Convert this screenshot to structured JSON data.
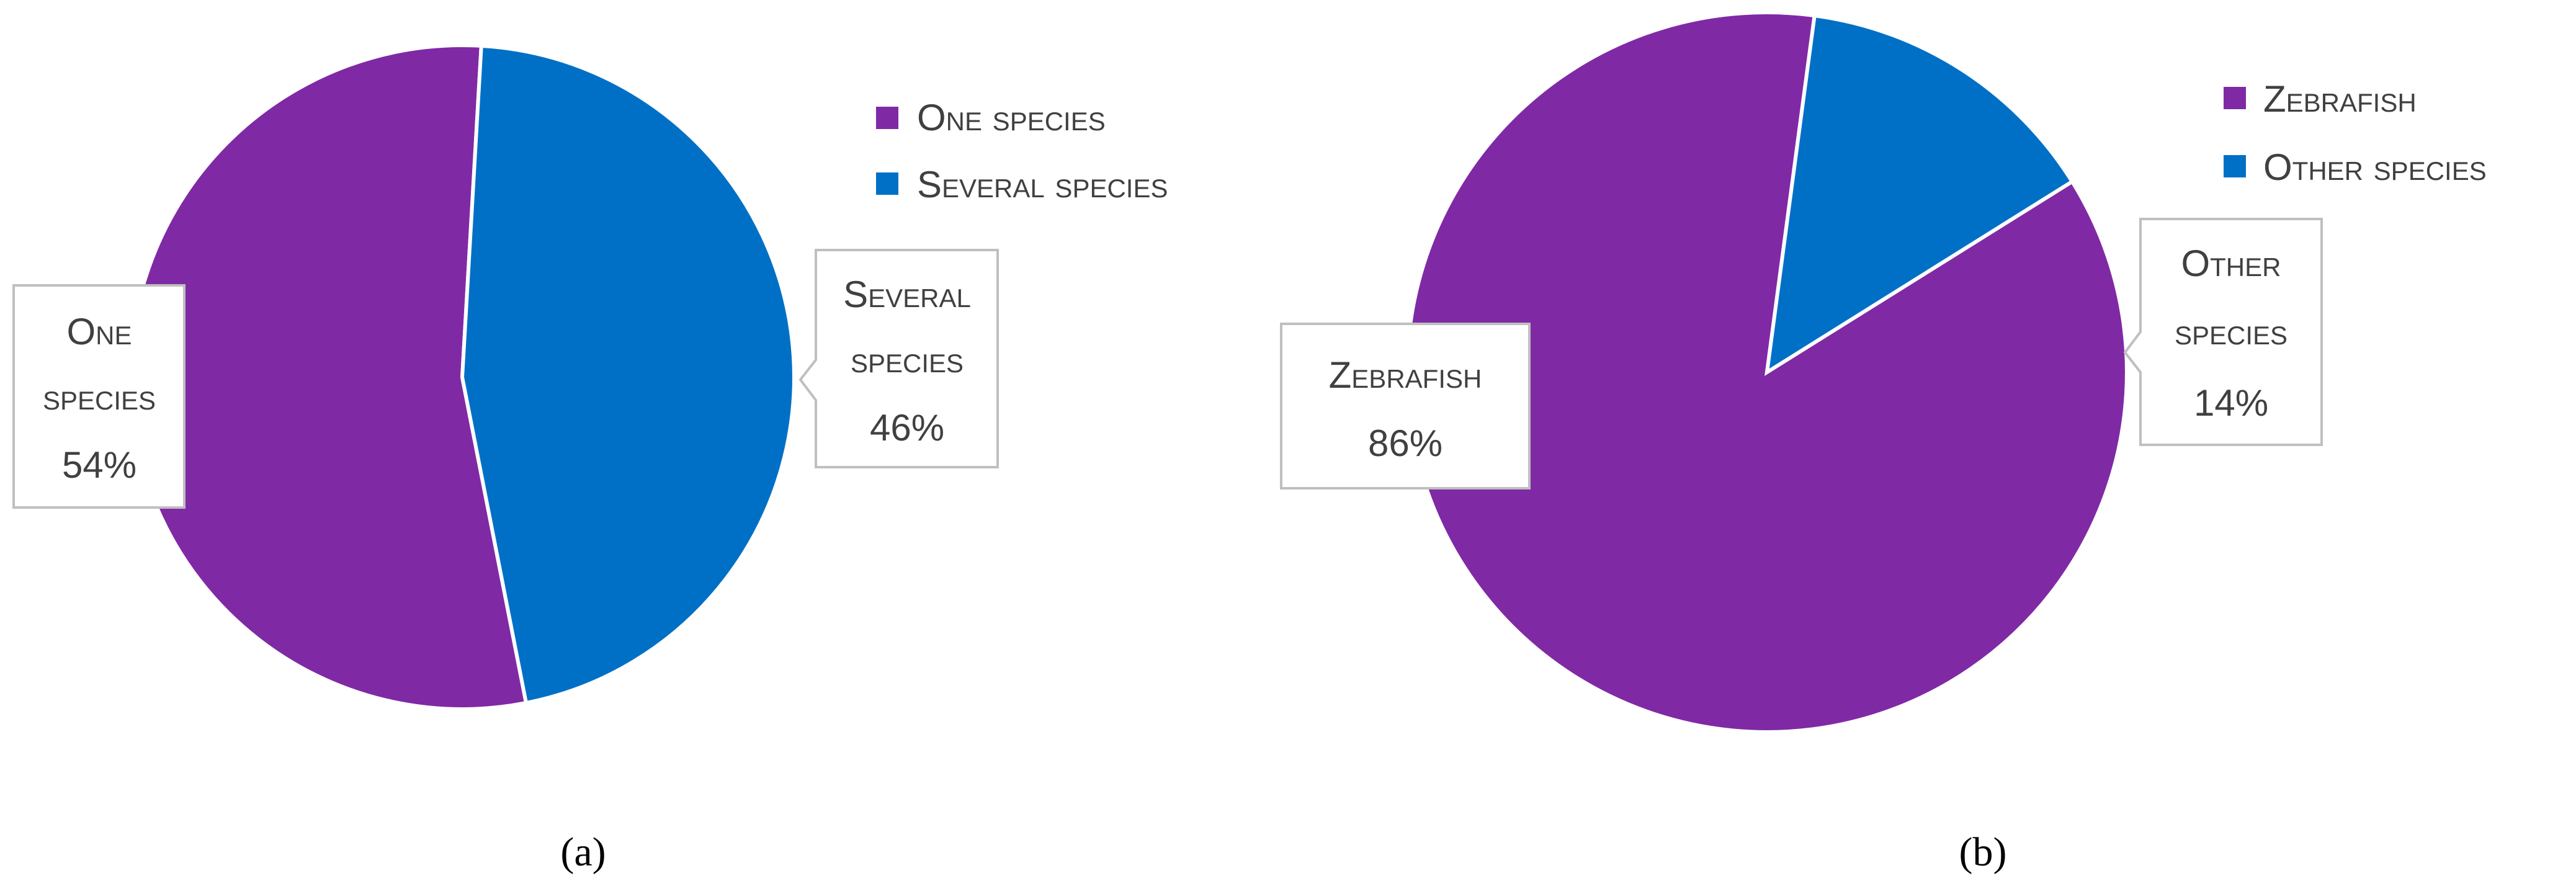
{
  "chart_data": [
    {
      "type": "pie",
      "panel_label": "a",
      "categories": [
        "One species",
        "Several species"
      ],
      "values": [
        54,
        46
      ],
      "value_labels": [
        "54%",
        "46%"
      ],
      "data_label_lines": [
        [
          "One",
          "species",
          "54%"
        ],
        [
          "Several",
          "species",
          "46%"
        ]
      ],
      "colors": [
        "#8029A5",
        "#0070C6"
      ],
      "legend": [
        "One species",
        "Several species"
      ],
      "legend_position": "top-right"
    },
    {
      "type": "pie",
      "panel_label": "b",
      "categories": [
        "Zebrafish",
        "Other species"
      ],
      "values": [
        86,
        14
      ],
      "value_labels": [
        "86%",
        "14%"
      ],
      "data_label_lines": [
        [
          "Zebrafish",
          "86%"
        ],
        [
          "Other",
          "species",
          "14%"
        ]
      ],
      "colors": [
        "#8029A5",
        "#0070C6"
      ],
      "legend": [
        "Zebrafish",
        "Other species"
      ],
      "legend_position": "top-right"
    }
  ],
  "captions": [
    "(a)",
    "(b)"
  ]
}
